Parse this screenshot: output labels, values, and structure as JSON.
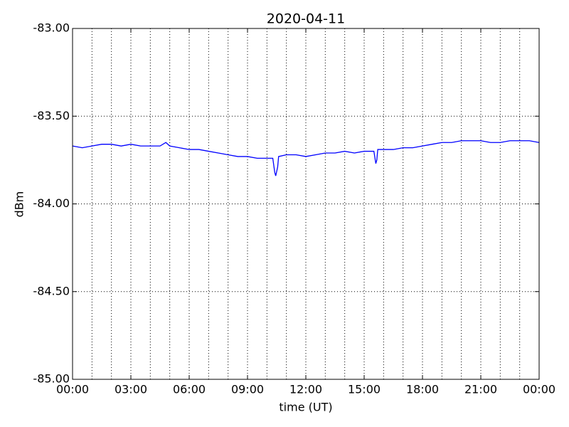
{
  "chart_data": {
    "type": "line",
    "title": "2020-04-11",
    "xlabel": "time (UT)",
    "ylabel": "dBm",
    "x": [
      0,
      0.5,
      1,
      1.5,
      2,
      2.5,
      3,
      3.5,
      4,
      4.5,
      4.8,
      5,
      5.5,
      6,
      6.5,
      7,
      7.5,
      8,
      8.5,
      9,
      9.5,
      10,
      10.3,
      10.4,
      10.45,
      10.55,
      10.6,
      11,
      11.5,
      12,
      12.5,
      13,
      13.5,
      14,
      14.5,
      15,
      15.5,
      15.6,
      15.65,
      15.7,
      16,
      16.5,
      17,
      17.5,
      18,
      18.5,
      19,
      19.5,
      20,
      20.5,
      21,
      21.5,
      22,
      22.5,
      23,
      23.5,
      24
    ],
    "values": [
      -83.67,
      -83.68,
      -83.67,
      -83.66,
      -83.66,
      -83.67,
      -83.66,
      -83.67,
      -83.67,
      -83.67,
      -83.65,
      -83.67,
      -83.68,
      -83.69,
      -83.69,
      -83.7,
      -83.71,
      -83.72,
      -83.73,
      -83.73,
      -83.74,
      -83.74,
      -83.74,
      -83.82,
      -83.84,
      -83.79,
      -83.73,
      -83.72,
      -83.72,
      -83.73,
      -83.72,
      -83.71,
      -83.71,
      -83.7,
      -83.71,
      -83.7,
      -83.7,
      -83.77,
      -83.75,
      -83.69,
      -83.69,
      -83.69,
      -83.68,
      -83.68,
      -83.67,
      -83.66,
      -83.65,
      -83.65,
      -83.64,
      -83.64,
      -83.64,
      -83.65,
      -83.65,
      -83.64,
      -83.64,
      -83.64,
      -83.65
    ],
    "color": "#0000ff",
    "xlim": [
      0,
      24
    ],
    "xticks": [
      {
        "value": 0,
        "label": "00:00"
      },
      {
        "value": 3,
        "label": "03:00"
      },
      {
        "value": 6,
        "label": "06:00"
      },
      {
        "value": 9,
        "label": "09:00"
      },
      {
        "value": 12,
        "label": "12:00"
      },
      {
        "value": 15,
        "label": "15:00"
      },
      {
        "value": 18,
        "label": "18:00"
      },
      {
        "value": 21,
        "label": "21:00"
      },
      {
        "value": 24,
        "label": "00:00"
      }
    ],
    "xgridticks": [
      1,
      2,
      3,
      4,
      5,
      6,
      7,
      8,
      9,
      10,
      11,
      12,
      13,
      14,
      15,
      16,
      17,
      18,
      19,
      20,
      21,
      22,
      23
    ],
    "ylim": [
      -85,
      -83
    ],
    "yticks": [
      {
        "value": -85,
        "label": "-85.00"
      },
      {
        "value": -84.5,
        "label": "-84.50"
      },
      {
        "value": -84,
        "label": "-84.00"
      },
      {
        "value": -83.5,
        "label": "-83.50"
      },
      {
        "value": -83,
        "label": "-83.00"
      }
    ],
    "grid": true
  }
}
